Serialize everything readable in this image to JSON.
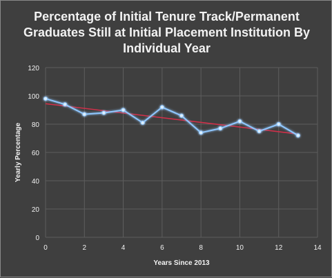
{
  "chart_data": {
    "type": "line",
    "title": "Percentage of Initial Tenure Track/Permanent Graduates Still at Initial Placement Institution By Individual Year",
    "xlabel": "Years Since 2013",
    "ylabel": "Yearly Percentage",
    "xlim": [
      0,
      14
    ],
    "ylim": [
      0,
      120
    ],
    "xticks": [
      0,
      2,
      4,
      6,
      8,
      10,
      12,
      14
    ],
    "yticks": [
      0,
      20,
      40,
      60,
      80,
      100,
      120
    ],
    "grid": true,
    "legend": "none",
    "series": [
      {
        "x": [
          0,
          1,
          2,
          3,
          4,
          5,
          6,
          7,
          8,
          9,
          10,
          11,
          12,
          13
        ],
        "values": [
          98,
          94,
          87,
          88,
          90,
          81,
          92,
          86,
          74,
          77,
          82,
          75,
          80,
          72
        ],
        "color": "#8fc7ff",
        "marker": "circle"
      },
      {
        "kind": "trendline",
        "x": [
          0,
          13
        ],
        "values": [
          94.5,
          73
        ],
        "color": "#d0304a"
      }
    ]
  }
}
